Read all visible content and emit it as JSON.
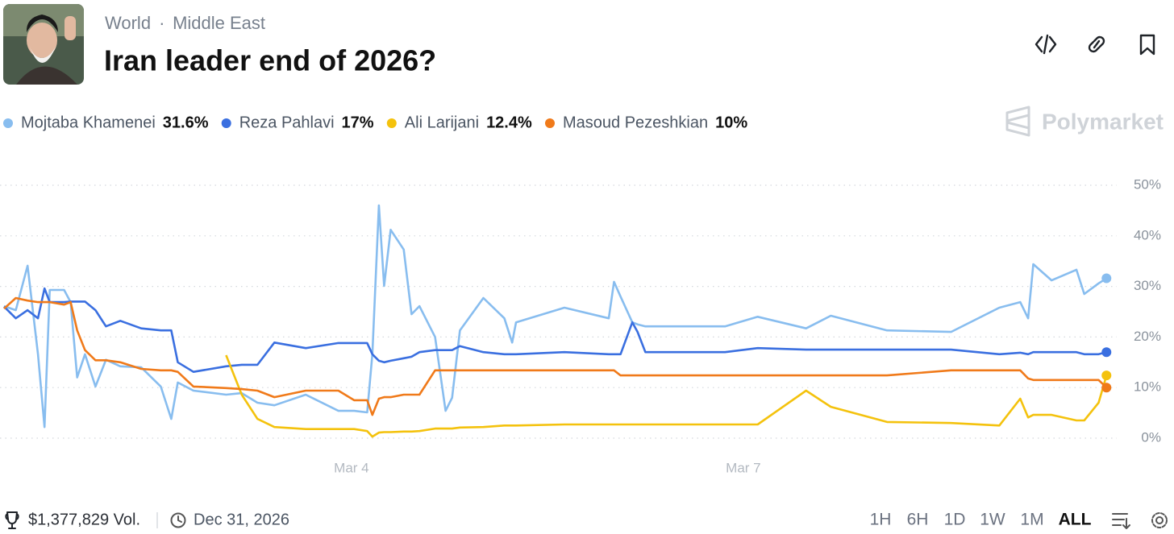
{
  "header": {
    "breadcrumb": [
      "World",
      "Middle East"
    ],
    "title": "Iran leader end of 2026?"
  },
  "brand": "Polymarket",
  "chart_data": {
    "type": "line",
    "x": [
      1.34,
      1.43,
      1.52,
      1.6,
      1.65,
      1.69,
      1.8,
      1.85,
      1.9,
      1.96,
      2.04,
      2.12,
      2.23,
      2.39,
      2.54,
      2.62,
      2.67,
      2.79,
      3.04,
      3.16,
      3.28,
      3.41,
      3.65,
      3.9,
      4.02,
      4.12,
      4.16,
      4.21,
      4.25,
      4.3,
      4.4,
      4.46,
      4.52,
      4.64,
      4.72,
      4.77,
      4.83,
      5.01,
      5.17,
      5.23,
      5.26,
      5.63,
      5.97,
      6.01,
      6.06,
      6.15,
      6.19,
      6.25,
      6.86,
      7.11,
      7.48,
      7.67,
      8.1,
      8.59,
      8.96,
      9.12,
      9.18,
      9.22,
      9.36,
      9.55,
      9.61,
      9.72,
      9.78
    ],
    "xlim": [
      1.34,
      9.8
    ],
    "xticks": [
      {
        "value": 4,
        "label": "Mar 4"
      },
      {
        "value": 7,
        "label": "Mar 7"
      }
    ],
    "ylim": [
      0,
      50
    ],
    "yticks": [
      {
        "value": 0,
        "label": "0%"
      },
      {
        "value": 10,
        "label": "10%"
      },
      {
        "value": 20,
        "label": "20%"
      },
      {
        "value": 30,
        "label": "30%"
      },
      {
        "value": 40,
        "label": "40%"
      },
      {
        "value": 50,
        "label": "50%"
      }
    ],
    "grid": true,
    "series": [
      {
        "name": "Mojtaba Khamenei",
        "color": "#88bdef",
        "last_label": "31.6%",
        "values": [
          26.1,
          25.3,
          34.1,
          16.6,
          2.2,
          29.3,
          29.3,
          26.9,
          12,
          16.6,
          10.2,
          15.5,
          14.2,
          14,
          10.2,
          3.8,
          11,
          9.4,
          8.6,
          8.9,
          7,
          6.5,
          8.6,
          5.4,
          5.4,
          5.1,
          16.6,
          46,
          30.1,
          41.2,
          37.3,
          24.5,
          26.1,
          20,
          5.4,
          8,
          21.3,
          27.7,
          23.7,
          18.9,
          22.9,
          25.8,
          23.7,
          30.9,
          28,
          22.9,
          22.5,
          22.1,
          22.1,
          24,
          21.7,
          24.2,
          21.3,
          21,
          25.8,
          26.9,
          23.7,
          34.4,
          31.2,
          33.3,
          28.5,
          30.6,
          31.6
        ]
      },
      {
        "name": "Reza Pahlavi",
        "color": "#3a6fe0",
        "last_label": "17%",
        "values": [
          26,
          23.7,
          25.3,
          23.7,
          29.6,
          26.9,
          26.9,
          27,
          27,
          27,
          25.3,
          22.1,
          23.2,
          21.7,
          21.3,
          21.3,
          15,
          13.1,
          14.2,
          14.5,
          14.5,
          18.9,
          17.8,
          18.8,
          18.8,
          18.8,
          16.6,
          15.3,
          15,
          15.3,
          15.8,
          16.1,
          17,
          17.4,
          17.4,
          17.4,
          18.2,
          17,
          16.6,
          16.6,
          16.6,
          17,
          16.6,
          16.6,
          16.6,
          22.9,
          21,
          17,
          17,
          17.8,
          17.5,
          17.5,
          17.5,
          17.5,
          16.6,
          16.9,
          16.6,
          17,
          17,
          17,
          16.6,
          16.6,
          17
        ]
      },
      {
        "name": "Ali Larijani",
        "color": "#f4c20d",
        "last_label": "12.4%",
        "values": [
          null,
          null,
          null,
          null,
          null,
          null,
          null,
          null,
          null,
          null,
          null,
          null,
          null,
          null,
          null,
          null,
          null,
          null,
          16.4,
          8.6,
          3.8,
          2.2,
          1.8,
          1.8,
          1.8,
          1.4,
          0.3,
          1.1,
          1.2,
          1.2,
          1.3,
          1.3,
          1.4,
          1.9,
          1.9,
          1.9,
          2.1,
          2.2,
          2.5,
          2.5,
          2.5,
          2.7,
          2.7,
          2.7,
          2.7,
          2.7,
          2.7,
          2.7,
          2.7,
          2.7,
          9.4,
          6.2,
          3.2,
          3,
          2.5,
          7.8,
          4.1,
          4.6,
          4.6,
          3.5,
          3.5,
          7,
          12.4
        ]
      },
      {
        "name": "Masoud Pezeshkian",
        "color": "#f07a1a",
        "last_label": "10%",
        "values": [
          25.6,
          27.7,
          27.2,
          26.9,
          26.9,
          26.9,
          26.4,
          26.9,
          21.3,
          17.4,
          15.4,
          15.4,
          15,
          13.7,
          13.4,
          13.4,
          13.1,
          10.2,
          9.9,
          9.7,
          9.4,
          8.1,
          9.4,
          9.4,
          7.5,
          7.5,
          4.6,
          7.8,
          8.1,
          8.1,
          8.6,
          8.6,
          8.6,
          13.4,
          13.4,
          13.4,
          13.4,
          13.4,
          13.4,
          13.4,
          13.4,
          13.4,
          13.4,
          13.4,
          12.4,
          12.4,
          12.4,
          12.4,
          12.4,
          12.4,
          12.4,
          12.4,
          12.4,
          13.4,
          13.4,
          13.4,
          11.8,
          11.5,
          11.5,
          11.5,
          11.5,
          11.5,
          10
        ]
      }
    ]
  },
  "footer": {
    "volume": "$1,377,829 Vol.",
    "end_date": "Dec 31, 2026",
    "ranges": [
      "1H",
      "6H",
      "1D",
      "1W",
      "1M",
      "ALL"
    ],
    "active_range": "ALL"
  }
}
